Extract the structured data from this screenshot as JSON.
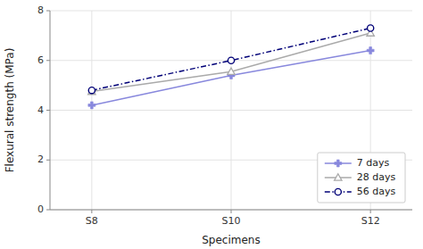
{
  "chart_data": {
    "type": "line",
    "categories": [
      "S8",
      "S10",
      "S12"
    ],
    "series": [
      {
        "name": "7 days",
        "color": "#8888dd",
        "values": [
          4.2,
          5.4,
          6.4
        ],
        "marker": "plus",
        "line_style": "solid"
      },
      {
        "name": "28 days",
        "color": "#aaaaaa",
        "values": [
          4.75,
          5.55,
          7.1
        ],
        "marker": "triangle",
        "line_style": "solid"
      },
      {
        "name": "56 days",
        "color": "#000077",
        "values": [
          4.8,
          6.0,
          7.3
        ],
        "marker": "circle",
        "line_style": "dashdot"
      }
    ],
    "xlabel": "Specimens",
    "ylabel": "Flexural strength (MPa)",
    "ylim": [
      0,
      8
    ],
    "yticks": [
      0,
      2,
      4,
      6,
      8
    ],
    "grid": true,
    "legend": "lower right"
  }
}
